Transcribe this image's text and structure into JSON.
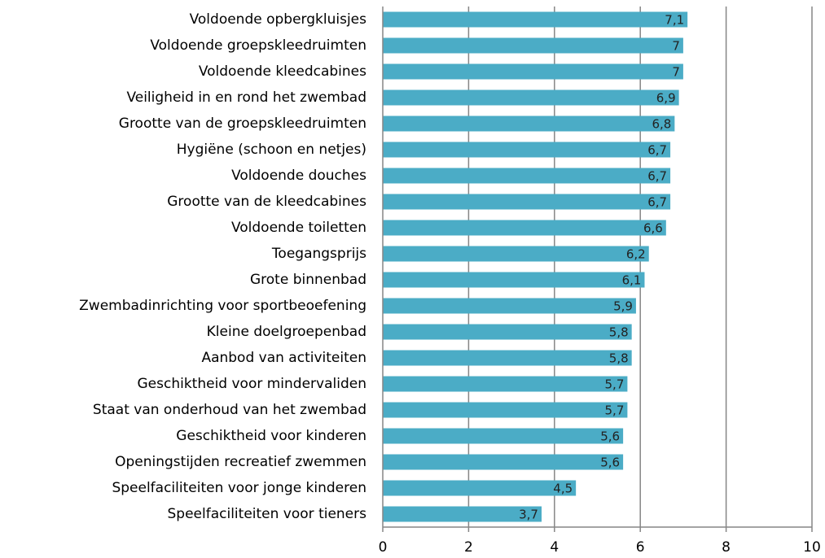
{
  "chart_data": {
    "type": "bar",
    "orientation": "horizontal",
    "categories": [
      "Voldoende opbergkluisjes",
      "Voldoende groepskleedruimten",
      "Voldoende kleedcabines",
      "Veiligheid in en rond het zwembad",
      "Grootte van de groepskleedruimten",
      "Hygiëne (schoon en netjes)",
      "Voldoende douches",
      "Grootte van de kleedcabines",
      "Voldoende toiletten",
      "Toegangsprijs",
      "Grote binnenbad",
      "Zwembadinrichting voor sportbeoefening",
      "Kleine doelgroepenbad",
      "Aanbod van activiteiten",
      "Geschiktheid voor mindervaliden",
      "Staat van onderhoud van het zwembad",
      "Geschiktheid voor kinderen",
      "Openingstijden recreatief zwemmen",
      "Speelfaciliteiten voor jonge kinderen",
      "Speelfaciliteiten voor tieners"
    ],
    "values": [
      7.1,
      7,
      7,
      6.9,
      6.8,
      6.7,
      6.7,
      6.7,
      6.6,
      6.2,
      6.1,
      5.9,
      5.8,
      5.8,
      5.7,
      5.7,
      5.6,
      5.6,
      4.5,
      3.7
    ],
    "value_labels": [
      "7,1",
      "7",
      "7",
      "6,9",
      "6,8",
      "6,7",
      "6,7",
      "6,7",
      "6,6",
      "6,2",
      "6,1",
      "5,9",
      "5,8",
      "5,8",
      "5,7",
      "5,7",
      "5,6",
      "5,6",
      "4,5",
      "3,7"
    ],
    "color": "#4bacc6",
    "xlim": [
      0,
      10
    ],
    "xticks": [
      0,
      2,
      4,
      6,
      8,
      10
    ],
    "grid": true
  }
}
